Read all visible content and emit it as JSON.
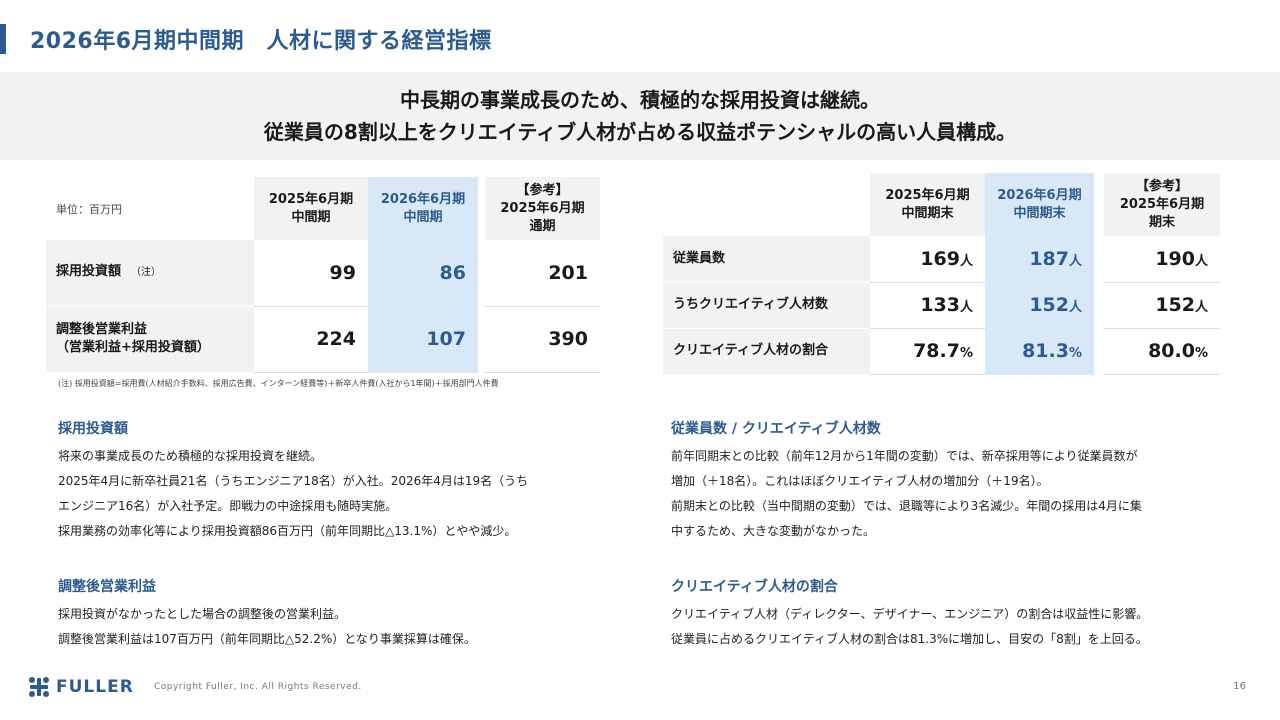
{
  "title": "2026年6月期中間期　人材に関する経営指標",
  "lead": {
    "line1": "中長期の事業成長のため、積極的な採用投資は継続。",
    "line2": "従業員の8割以上をクリエイティブ人材が占める収益ポテンシャルの高い人員構成。"
  },
  "left_table": {
    "unit": "単位：百万円",
    "headers": {
      "prev": [
        "2025年6月期",
        "中間期"
      ],
      "cur": [
        "2026年6月期",
        "中間期"
      ],
      "ref": [
        "【参考】",
        "2025年6月期",
        "通期"
      ]
    },
    "rows": [
      {
        "label": "採用投資額",
        "note": "（注）",
        "prev": "99",
        "cur": "86",
        "ref": "201"
      },
      {
        "label": "調整後営業利益",
        "label2": "（営業利益+採用投資額）",
        "prev": "224",
        "cur": "107",
        "ref": "390"
      }
    ],
    "footnote": "(注) 採用投資額=採用費(人材紹介手数料、採用広告費、インターン経費等)＋新卒人件費(入社から1年間)＋採用部門人件費"
  },
  "right_table": {
    "headers": {
      "prev": [
        "2025年6月期",
        "中間期末"
      ],
      "cur": [
        "2026年6月期",
        "中間期末"
      ],
      "ref": [
        "【参考】",
        "2025年6月期",
        "期末"
      ]
    },
    "rows": [
      {
        "label": "従業員数",
        "prev": "169",
        "cur": "187",
        "ref": "190",
        "unit": "人"
      },
      {
        "label": "うちクリエイティブ人材数",
        "prev": "133",
        "cur": "152",
        "ref": "152",
        "unit": "人"
      },
      {
        "label": "クリエイティブ人材の割合",
        "prev": "78.7",
        "cur": "81.3",
        "ref": "80.0",
        "unit": "%"
      }
    ]
  },
  "sections": {
    "recruit": {
      "heading": "採用投資額",
      "lines": [
        "将来の事業成長のため積極的な採用投資を継続。",
        "2025年4月に新卒社員21名（うちエンジニア18名）が入社。2026年4月は19名（うち",
        "エンジニア16名）が入社予定。即戦力の中途採用も随時実施。",
        "採用業務の効率化等により採用投資額86百万円（前年同期比△13.1%）とやや減少。"
      ]
    },
    "profit": {
      "heading": "調整後営業利益",
      "lines": [
        "採用投資がなかったとした場合の調整後の営業利益。",
        "調整後営業利益は107百万円（前年同期比△52.2%）となり事業採算は確保。"
      ]
    },
    "employees": {
      "heading": "従業員数 / クリエイティブ人材数",
      "lines": [
        "前年同期末との比較（前年12月から1年間の変動）では、新卒採用等により従業員数が",
        "増加（＋18名）。これはほぼクリエイティブ人材の増加分（＋19名）。",
        "前期末との比較（当中間期の変動）では、退職等により3名減少。年間の採用は4月に集",
        "中するため、大きな変動がなかった。"
      ]
    },
    "ratio": {
      "heading": "クリエイティブ人材の割合",
      "lines": [
        "クリエイティブ人材（ディレクター、デザイナー、エンジニア）の割合は収益性に影響。",
        "従業員に占めるクリエイティブ人材の割合は81.3%に増加し、目安の「8割」を上回る。"
      ]
    }
  },
  "footer": {
    "logo_text": "FULLER",
    "logo_icon": "fuller-mark-icon",
    "copyright": "Copyright Fuller, Inc. All Rights Reserved.",
    "page": "16"
  },
  "colors": {
    "accent": "#2e5b8f",
    "highlight": "#d9e8f7",
    "header_bg": "#f1f2f4"
  }
}
